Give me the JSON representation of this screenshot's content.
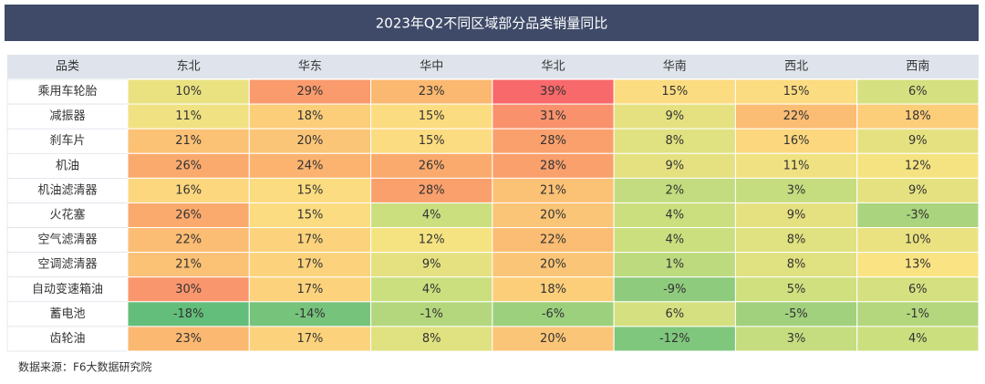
{
  "chart_data": {
    "type": "heatmap",
    "title": "2023年Q2不同区域部分品类销量同比",
    "row_header": "品类",
    "categories": [
      "东北",
      "华东",
      "华中",
      "华北",
      "华南",
      "西北",
      "西南"
    ],
    "rows": [
      "乘用车轮胎",
      "减振器",
      "刹车片",
      "机油",
      "机油滤清器",
      "火花塞",
      "空气滤清器",
      "空调滤清器",
      "自动变速箱油",
      "蓄电池",
      "齿轮油"
    ],
    "values": [
      [
        10,
        29,
        23,
        39,
        15,
        15,
        6
      ],
      [
        11,
        18,
        15,
        31,
        9,
        22,
        18
      ],
      [
        21,
        20,
        15,
        28,
        8,
        16,
        9
      ],
      [
        26,
        24,
        26,
        28,
        9,
        11,
        12
      ],
      [
        16,
        15,
        28,
        21,
        2,
        3,
        9
      ],
      [
        26,
        15,
        4,
        20,
        4,
        9,
        -3
      ],
      [
        22,
        17,
        12,
        22,
        4,
        8,
        10
      ],
      [
        21,
        17,
        9,
        20,
        1,
        8,
        13
      ],
      [
        30,
        17,
        4,
        18,
        -9,
        5,
        6
      ],
      [
        -18,
        -14,
        -1,
        -6,
        6,
        -5,
        -1
      ],
      [
        23,
        17,
        8,
        20,
        -12,
        3,
        4
      ]
    ],
    "value_labels": [
      [
        "10%",
        "29%",
        "23%",
        "39%",
        "15%",
        "15%",
        "6%"
      ],
      [
        "11%",
        "18%",
        "15%",
        "31%",
        "9%",
        "22%",
        "18%"
      ],
      [
        "21%",
        "20%",
        "15%",
        "28%",
        "8%",
        "16%",
        "9%"
      ],
      [
        "26%",
        "24%",
        "26%",
        "28%",
        "9%",
        "11%",
        "12%"
      ],
      [
        "16%",
        "15%",
        "28%",
        "21%",
        "2%",
        "3%",
        "9%"
      ],
      [
        "26%",
        "15%",
        "4%",
        "20%",
        "4%",
        "9%",
        "-3%"
      ],
      [
        "22%",
        "17%",
        "12%",
        "22%",
        "4%",
        "8%",
        "10%"
      ],
      [
        "21%",
        "17%",
        "9%",
        "20%",
        "1%",
        "8%",
        "13%"
      ],
      [
        "30%",
        "17%",
        "4%",
        "18%",
        "-9%",
        "5%",
        "6%"
      ],
      [
        "-18%",
        "-14%",
        "-1%",
        "-6%",
        "6%",
        "-5%",
        "-1%"
      ],
      [
        "23%",
        "17%",
        "8%",
        "20%",
        "-12%",
        "3%",
        "4%"
      ]
    ],
    "source": "数据来源：F6大数据研究院"
  }
}
